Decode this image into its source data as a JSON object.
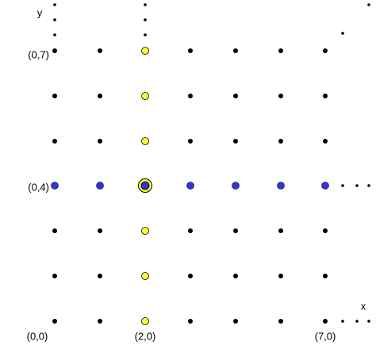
{
  "axes": {
    "y": "y",
    "x": "x"
  },
  "point_labels": {
    "top_left": "(0,7)",
    "middle_left": "(0,4)",
    "origin": "(0,0)",
    "bottom_middle": "(2,0)",
    "bottom_right": "(7,0)"
  }
}
